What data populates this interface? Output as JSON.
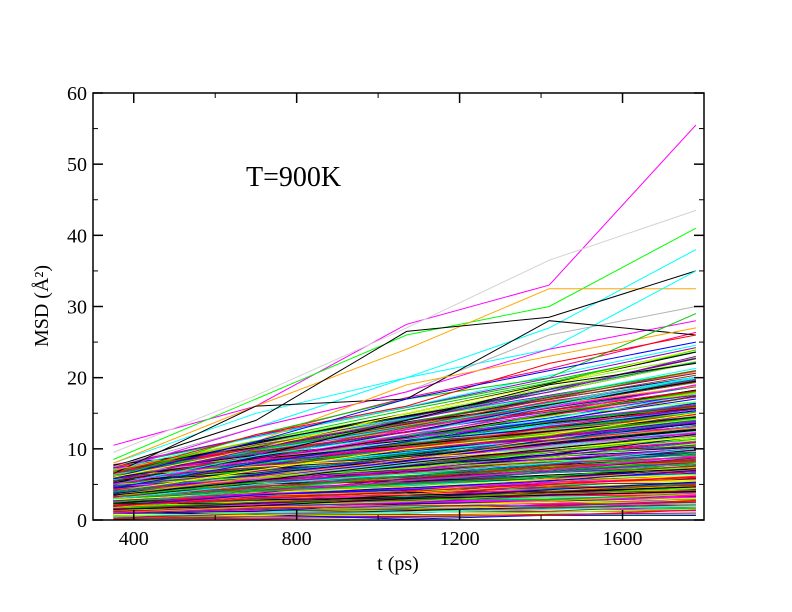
{
  "chart_data": {
    "type": "line",
    "annotation": "T=900K",
    "xlabel": "t (ps)",
    "ylabel": "MSD (Å²)",
    "xlim": [
      300,
      1800
    ],
    "ylim": [
      0,
      60
    ],
    "x": [
      350,
      700,
      1070,
      1420,
      1780
    ],
    "xticks": [
      400,
      800,
      1200,
      1600
    ],
    "yticks": [
      0,
      10,
      20,
      30,
      40,
      50,
      60
    ],
    "grid": false,
    "legend": "none",
    "palette": [
      "#000000",
      "#ff0000",
      "#00cc00",
      "#0000ff",
      "#ffff00",
      "#8b4513",
      "#b3b3b3",
      "#9400d3",
      "#00ffff",
      "#ff00ff",
      "#ffa500",
      "#7f007f",
      "#ff0080",
      "#80ff00",
      "#008080",
      "#00008b"
    ],
    "series": [
      {
        "color": "#ff00ff",
        "values": [
          10.5,
          16,
          27.5,
          33,
          55.5
        ]
      },
      {
        "color": "#d3d3d3",
        "values": [
          9.5,
          17.5,
          27,
          36.5,
          43.5
        ]
      },
      {
        "color": "#00ff00",
        "values": [
          8.5,
          17,
          26,
          30,
          41
        ]
      },
      {
        "color": "#00ffff",
        "values": [
          8,
          15,
          20,
          27,
          38
        ]
      },
      {
        "color": "#ffa500",
        "values": [
          8,
          16,
          24,
          32.5,
          32.5
        ]
      },
      {
        "color": "#000000",
        "values": [
          7.5,
          14,
          26.5,
          28.5,
          35
        ]
      },
      {
        "color": "#00ffff",
        "values": [
          7,
          13,
          20,
          24,
          35
        ]
      },
      {
        "color": "#b3b3b3",
        "values": [
          7.5,
          13,
          18,
          26,
          30
        ]
      },
      {
        "color": "#ff00ff",
        "values": [
          7,
          13,
          18,
          24,
          28
        ]
      },
      {
        "color": "#000000",
        "values": [
          6.5,
          16,
          17,
          28,
          26
        ]
      },
      {
        "color": "#ffa500",
        "values": [
          7,
          11,
          19,
          23,
          27
        ]
      },
      {
        "color": "#00cc00",
        "values": [
          6,
          12,
          17,
          20,
          29
        ]
      },
      {
        "color": "#ff0000",
        "values": [
          6.5,
          12,
          16,
          22,
          26
        ]
      },
      {
        "color": "#0000ff",
        "values": [
          6,
          11,
          17,
          21,
          25
        ]
      },
      {
        "color": "#ffff00",
        "values": [
          6,
          10,
          15,
          19,
          24
        ]
      },
      {
        "color": "#9400d3",
        "values": [
          5.5,
          10,
          14,
          18,
          23
        ]
      },
      {
        "color": "#000000",
        "values": [
          5,
          9,
          14,
          19,
          22
        ]
      },
      {
        "color": "#8b4513",
        "values": [
          5.5,
          9,
          13,
          17,
          21
        ]
      },
      {
        "color": "#00ffff",
        "values": [
          5,
          9,
          12,
          16,
          20
        ]
      },
      {
        "color": "#ff00ff",
        "values": [
          5,
          8.5,
          12,
          15,
          19
        ]
      },
      {
        "color": "#00cc00",
        "values": [
          4.5,
          8,
          11,
          15,
          18
        ]
      },
      {
        "color": "#0000ff",
        "values": [
          4.5,
          8,
          11,
          14,
          17
        ]
      },
      {
        "color": "#ff0000",
        "values": [
          4,
          7,
          10,
          13,
          16
        ]
      },
      {
        "color": "#ffff00",
        "values": [
          4,
          7,
          10,
          12,
          15
        ]
      },
      {
        "color": "#008080",
        "values": [
          4,
          6.5,
          9,
          11,
          14
        ]
      },
      {
        "color": "#ffa500",
        "values": [
          3.5,
          6,
          8.5,
          11,
          13
        ]
      },
      {
        "color": "#000000",
        "values": [
          3.5,
          5.5,
          8,
          10,
          12
        ]
      },
      {
        "color": "#9400d3",
        "values": [
          3,
          5,
          7,
          9,
          11
        ]
      },
      {
        "color": "#00ffff",
        "values": [
          3,
          5,
          6.5,
          8,
          10
        ]
      },
      {
        "color": "#ff00ff",
        "values": [
          2.5,
          4,
          5.5,
          7,
          9
        ]
      },
      {
        "color": "#00cc00",
        "values": [
          2.5,
          4,
          5,
          6,
          8
        ]
      },
      {
        "color": "#0000ff",
        "values": [
          2,
          3.5,
          4.5,
          5.5,
          7
        ]
      },
      {
        "color": "#ff0000",
        "values": [
          2,
          3,
          4,
          5,
          6
        ]
      },
      {
        "color": "#8b4513",
        "values": [
          1.5,
          2.5,
          3,
          4,
          5
        ]
      },
      {
        "color": "#000000",
        "values": [
          1.5,
          2,
          3,
          3.5,
          4
        ]
      },
      {
        "color": "#ffff00",
        "values": [
          1,
          1.5,
          2,
          2.5,
          3
        ]
      },
      {
        "color": "#9400d3",
        "values": [
          1,
          1.5,
          2,
          2,
          2.5
        ]
      },
      {
        "color": "#00ffff",
        "values": [
          0.5,
          1,
          1,
          1.5,
          2
        ]
      }
    ]
  }
}
